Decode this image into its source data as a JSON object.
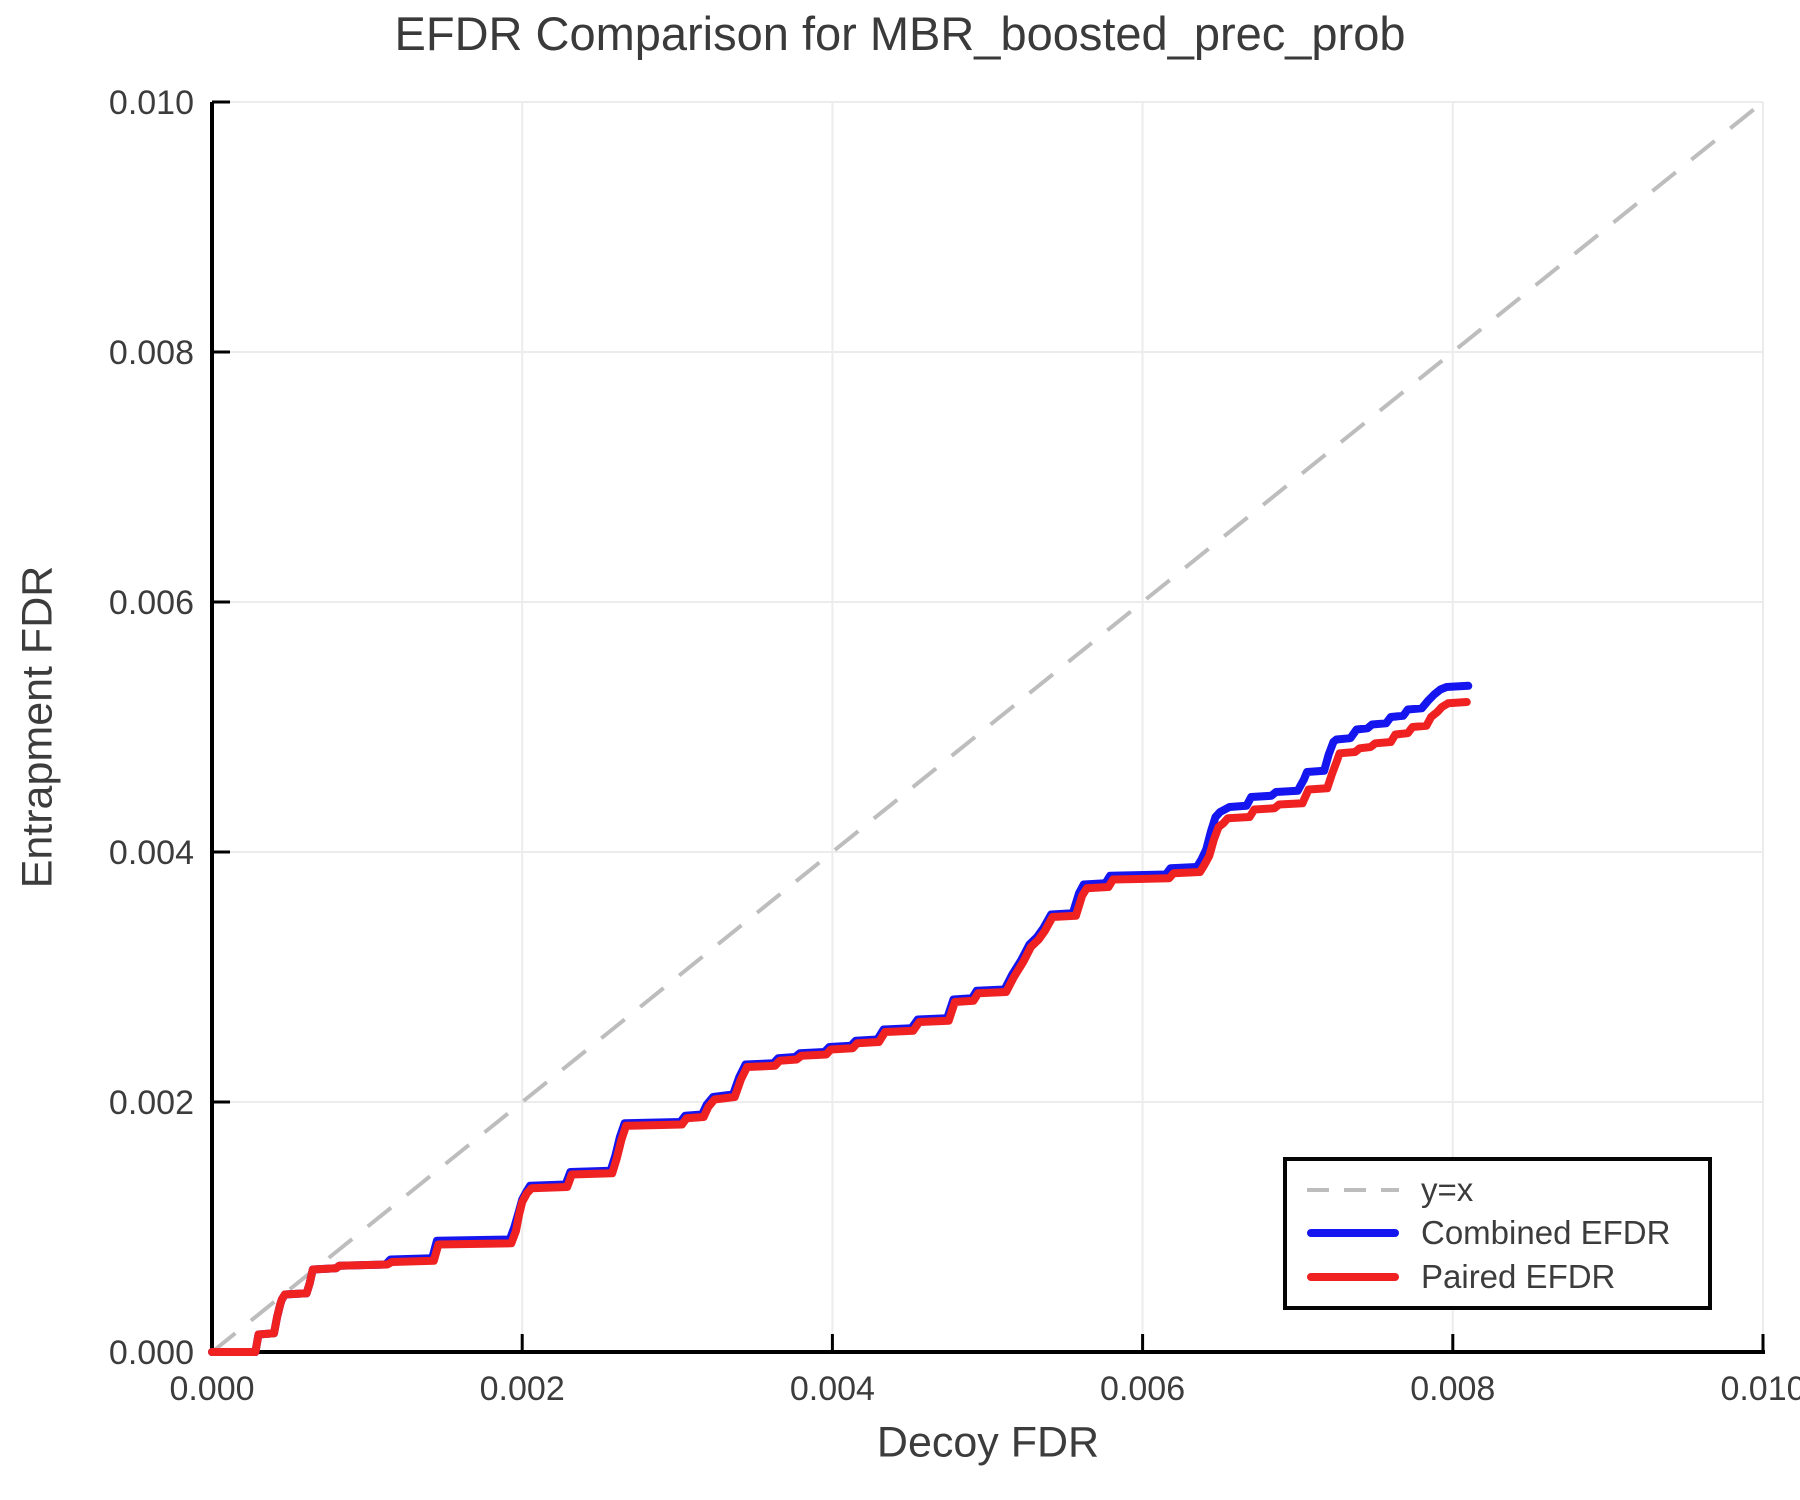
{
  "chart_data": {
    "type": "line",
    "title": "EFDR Comparison for MBR_boosted_prec_prob",
    "xlabel": "Decoy FDR",
    "ylabel": "Entrapment FDR",
    "xlim": [
      0.0,
      0.01
    ],
    "ylim": [
      0.0,
      0.01
    ],
    "grid": true,
    "legend_position": "bottom-right",
    "colors": {
      "grid": "#ececec",
      "axis": "#000000",
      "text": "#3c3c3c"
    },
    "x_ticks": {
      "values": [
        0.0,
        0.002,
        0.004,
        0.006,
        0.008,
        0.01
      ],
      "labels": [
        "0.000",
        "0.002",
        "0.004",
        "0.006",
        "0.008",
        "0.010"
      ]
    },
    "y_ticks": {
      "values": [
        0.0,
        0.002,
        0.004,
        0.006,
        0.008,
        0.01
      ],
      "labels": [
        "0.000",
        "0.002",
        "0.004",
        "0.006",
        "0.008",
        "0.010"
      ]
    },
    "series": [
      {
        "id": "identity",
        "name": "y=x",
        "style": "dashed",
        "color": "#bdbdbd",
        "points": [
          [
            0.0,
            0.0
          ],
          [
            0.01,
            0.01
          ]
        ]
      },
      {
        "id": "combined",
        "name": "Combined EFDR",
        "style": "solid",
        "color": "#1515ef",
        "points": [
          [
            0.0,
            0.0
          ],
          [
            0.00028,
            0.0
          ],
          [
            0.0003,
            0.00014
          ],
          [
            0.0004,
            0.00015
          ],
          [
            0.00042,
            0.00028
          ],
          [
            0.00044,
            0.00038
          ],
          [
            0.00045,
            0.00042
          ],
          [
            0.00047,
            0.00046
          ],
          [
            0.00061,
            0.00047
          ],
          [
            0.00063,
            0.00055
          ],
          [
            0.00065,
            0.00066
          ],
          [
            0.0008,
            0.00067
          ],
          [
            0.00082,
            0.00069
          ],
          [
            0.00112,
            0.0007
          ],
          [
            0.00115,
            0.00074
          ],
          [
            0.00142,
            0.00075
          ],
          [
            0.00145,
            0.00089
          ],
          [
            0.00192,
            0.0009
          ],
          [
            0.00195,
            0.001
          ],
          [
            0.00198,
            0.00113
          ],
          [
            0.002,
            0.00122
          ],
          [
            0.00203,
            0.00129
          ],
          [
            0.00205,
            0.00133
          ],
          [
            0.00228,
            0.00134
          ],
          [
            0.00231,
            0.00144
          ],
          [
            0.00257,
            0.00145
          ],
          [
            0.0026,
            0.00157
          ],
          [
            0.00263,
            0.00172
          ],
          [
            0.00266,
            0.00183
          ],
          [
            0.00302,
            0.00184
          ],
          [
            0.00305,
            0.00189
          ],
          [
            0.00316,
            0.0019
          ],
          [
            0.00319,
            0.00198
          ],
          [
            0.00323,
            0.00204
          ],
          [
            0.00336,
            0.00206
          ],
          [
            0.0034,
            0.0022
          ],
          [
            0.00344,
            0.0023
          ],
          [
            0.00362,
            0.00231
          ],
          [
            0.00365,
            0.00235
          ],
          [
            0.00376,
            0.00236
          ],
          [
            0.00379,
            0.00239
          ],
          [
            0.00395,
            0.0024
          ],
          [
            0.00398,
            0.00244
          ],
          [
            0.00412,
            0.00245
          ],
          [
            0.00415,
            0.00249
          ],
          [
            0.00429,
            0.0025
          ],
          [
            0.00433,
            0.00258
          ],
          [
            0.00451,
            0.00259
          ],
          [
            0.00455,
            0.00266
          ],
          [
            0.00474,
            0.00267
          ],
          [
            0.00478,
            0.00282
          ],
          [
            0.0049,
            0.00283
          ],
          [
            0.00493,
            0.00289
          ],
          [
            0.00511,
            0.0029
          ],
          [
            0.00516,
            0.00302
          ],
          [
            0.00522,
            0.00314
          ],
          [
            0.00527,
            0.00326
          ],
          [
            0.00532,
            0.00332
          ],
          [
            0.00536,
            0.00339
          ],
          [
            0.00541,
            0.0035
          ],
          [
            0.00555,
            0.00351
          ],
          [
            0.00559,
            0.00367
          ],
          [
            0.00562,
            0.00374
          ],
          [
            0.00576,
            0.00375
          ],
          [
            0.00579,
            0.00381
          ],
          [
            0.00615,
            0.00382
          ],
          [
            0.00618,
            0.00387
          ],
          [
            0.00635,
            0.00388
          ],
          [
            0.00638,
            0.00394
          ],
          [
            0.00641,
            0.00402
          ],
          [
            0.00644,
            0.00416
          ],
          [
            0.00647,
            0.00428
          ],
          [
            0.0065,
            0.00432
          ],
          [
            0.00653,
            0.00434
          ],
          [
            0.00656,
            0.00436
          ],
          [
            0.00667,
            0.00437
          ],
          [
            0.0067,
            0.00444
          ],
          [
            0.00683,
            0.00445
          ],
          [
            0.00686,
            0.00448
          ],
          [
            0.007,
            0.00449
          ],
          [
            0.00704,
            0.00458
          ],
          [
            0.00706,
            0.00464
          ],
          [
            0.00717,
            0.00465
          ],
          [
            0.0072,
            0.00478
          ],
          [
            0.00723,
            0.00488
          ],
          [
            0.00725,
            0.0049
          ],
          [
            0.00734,
            0.00491
          ],
          [
            0.00738,
            0.00498
          ],
          [
            0.00745,
            0.00499
          ],
          [
            0.00748,
            0.00502
          ],
          [
            0.00757,
            0.00503
          ],
          [
            0.0076,
            0.00508
          ],
          [
            0.00768,
            0.00509
          ],
          [
            0.00771,
            0.00514
          ],
          [
            0.0078,
            0.00515
          ],
          [
            0.00784,
            0.00521
          ],
          [
            0.00788,
            0.00526
          ],
          [
            0.00792,
            0.0053
          ],
          [
            0.00796,
            0.00532
          ],
          [
            0.0081,
            0.00533
          ]
        ]
      },
      {
        "id": "paired",
        "name": "Paired EFDR",
        "style": "solid",
        "color": "#ef2121",
        "points": [
          [
            0.0,
            0.0
          ],
          [
            0.00028,
            0.0
          ],
          [
            0.0003,
            0.00014
          ],
          [
            0.0004,
            0.00015
          ],
          [
            0.00042,
            0.00028
          ],
          [
            0.00044,
            0.00038
          ],
          [
            0.00045,
            0.00042
          ],
          [
            0.00047,
            0.00046
          ],
          [
            0.00061,
            0.00047
          ],
          [
            0.00063,
            0.00055
          ],
          [
            0.00065,
            0.00066
          ],
          [
            0.0008,
            0.00067
          ],
          [
            0.00082,
            0.00069
          ],
          [
            0.00113,
            0.0007
          ],
          [
            0.00116,
            0.00072
          ],
          [
            0.00143,
            0.00073
          ],
          [
            0.00146,
            0.00086
          ],
          [
            0.00193,
            0.00087
          ],
          [
            0.00196,
            0.00097
          ],
          [
            0.00198,
            0.0011
          ],
          [
            0.002,
            0.0012
          ],
          [
            0.00203,
            0.00127
          ],
          [
            0.00206,
            0.00131
          ],
          [
            0.00229,
            0.00132
          ],
          [
            0.00232,
            0.00142
          ],
          [
            0.00258,
            0.00143
          ],
          [
            0.00261,
            0.00155
          ],
          [
            0.00264,
            0.0017
          ],
          [
            0.00267,
            0.00181
          ],
          [
            0.00303,
            0.00182
          ],
          [
            0.00306,
            0.00187
          ],
          [
            0.00317,
            0.00188
          ],
          [
            0.0032,
            0.00196
          ],
          [
            0.00324,
            0.00202
          ],
          [
            0.00337,
            0.00204
          ],
          [
            0.00341,
            0.00218
          ],
          [
            0.00345,
            0.00228
          ],
          [
            0.00363,
            0.00229
          ],
          [
            0.00366,
            0.00233
          ],
          [
            0.00377,
            0.00234
          ],
          [
            0.0038,
            0.00237
          ],
          [
            0.00396,
            0.00238
          ],
          [
            0.00399,
            0.00242
          ],
          [
            0.00413,
            0.00243
          ],
          [
            0.00416,
            0.00247
          ],
          [
            0.0043,
            0.00248
          ],
          [
            0.00434,
            0.00256
          ],
          [
            0.00452,
            0.00257
          ],
          [
            0.00456,
            0.00264
          ],
          [
            0.00475,
            0.00265
          ],
          [
            0.00479,
            0.0028
          ],
          [
            0.00491,
            0.00281
          ],
          [
            0.00494,
            0.00287
          ],
          [
            0.00512,
            0.00288
          ],
          [
            0.00517,
            0.003
          ],
          [
            0.00523,
            0.00312
          ],
          [
            0.00528,
            0.00324
          ],
          [
            0.00533,
            0.0033
          ],
          [
            0.00537,
            0.00337
          ],
          [
            0.00542,
            0.00348
          ],
          [
            0.00557,
            0.00349
          ],
          [
            0.00561,
            0.00365
          ],
          [
            0.00564,
            0.00371
          ],
          [
            0.00578,
            0.00372
          ],
          [
            0.00581,
            0.00378
          ],
          [
            0.00617,
            0.00379
          ],
          [
            0.0062,
            0.00383
          ],
          [
            0.00637,
            0.00384
          ],
          [
            0.0064,
            0.0039
          ],
          [
            0.00643,
            0.00397
          ],
          [
            0.00646,
            0.0041
          ],
          [
            0.00649,
            0.0042
          ],
          [
            0.00652,
            0.00423
          ],
          [
            0.00655,
            0.00427
          ],
          [
            0.00669,
            0.00428
          ],
          [
            0.00672,
            0.00434
          ],
          [
            0.00685,
            0.00435
          ],
          [
            0.00688,
            0.00438
          ],
          [
            0.00703,
            0.00439
          ],
          [
            0.00707,
            0.0045
          ],
          [
            0.00719,
            0.00451
          ],
          [
            0.00722,
            0.00462
          ],
          [
            0.00725,
            0.00472
          ],
          [
            0.00727,
            0.00479
          ],
          [
            0.00737,
            0.0048
          ],
          [
            0.0074,
            0.00483
          ],
          [
            0.00747,
            0.00484
          ],
          [
            0.0075,
            0.00487
          ],
          [
            0.0076,
            0.00488
          ],
          [
            0.00763,
            0.00494
          ],
          [
            0.00771,
            0.00495
          ],
          [
            0.00774,
            0.005
          ],
          [
            0.00783,
            0.00501
          ],
          [
            0.00786,
            0.00508
          ],
          [
            0.0079,
            0.00512
          ],
          [
            0.00793,
            0.00516
          ],
          [
            0.00797,
            0.00519
          ],
          [
            0.00809,
            0.0052
          ]
        ]
      }
    ]
  },
  "legend": {
    "items": [
      {
        "label": "y=x"
      },
      {
        "label": "Combined EFDR"
      },
      {
        "label": "Paired EFDR"
      }
    ]
  }
}
